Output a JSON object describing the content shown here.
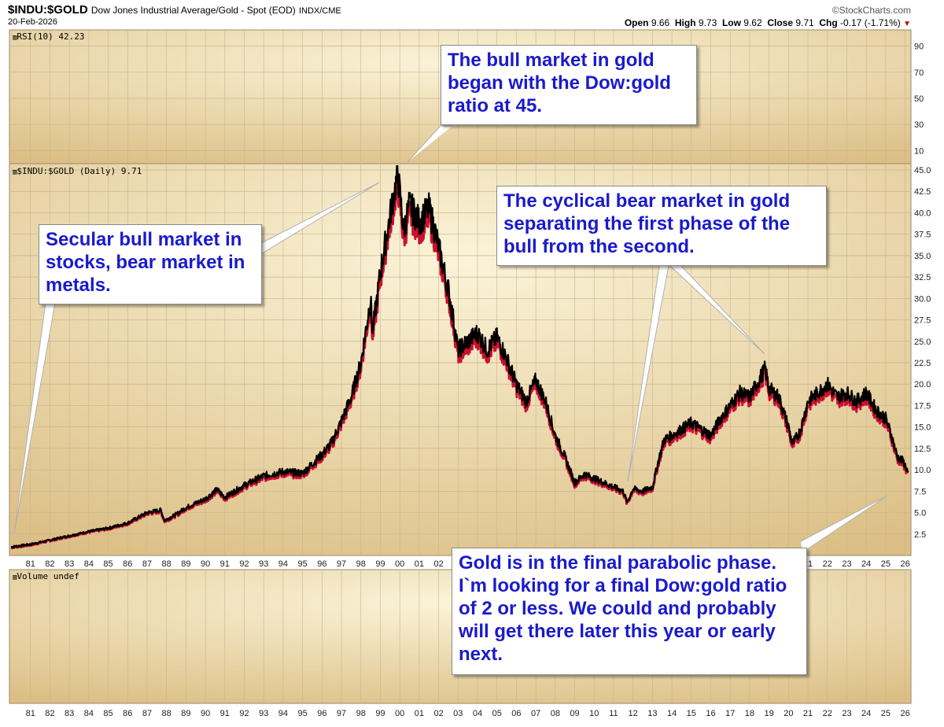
{
  "header": {
    "symbol": "$INDU:$GOLD",
    "description": "Dow Jones Industrial Average/Gold - Spot (EOD)",
    "exchange": "INDX/CME",
    "date": "20-Feb-2026",
    "watermark": "©StockCharts.com",
    "open_label": "Open",
    "open_value": "9.66",
    "high_label": "High",
    "high_value": "9.73",
    "low_label": "Low",
    "low_value": "9.62",
    "close_label": "Close",
    "close_value": "9.71",
    "chg_label": "Chg",
    "chg_value": "-0.17 (-1.71%)",
    "chg_arrow": "▼"
  },
  "panels": {
    "rsi_label": "RSI(10) 42.23",
    "price_label": "$INDU:$GOLD (Daily) 9.71",
    "volume_label": "Volume undef"
  },
  "callouts": {
    "bull_gold": "The bull market in gold began with the Dow:gold ratio at 45.",
    "secular": "Secular bull market in stocks, bear market in metals.",
    "cyclical": "The cyclical bear market in gold separating the first phase of the bull from the second.",
    "parabolic": "Gold is in the final parabolic phase. I`m looking for a final Dow:gold ratio of 2 or less. We could and probably will get there later this year or early next."
  },
  "colors": {
    "panel_bg": "#f0dcaa",
    "grid": "#c9b48b",
    "price_up": "#000000",
    "price_down": "#cc1030",
    "callout_text": "#1a1acc",
    "chg_down": "#cc0000"
  },
  "chart_data": {
    "type": "line",
    "title": "$INDU:$GOLD Dow Jones Industrial Average/Gold - Spot (EOD)",
    "xlabel": "",
    "ylabel": "",
    "x_ticks": [
      "81",
      "82",
      "83",
      "84",
      "85",
      "86",
      "87",
      "88",
      "89",
      "90",
      "91",
      "92",
      "93",
      "94",
      "95",
      "96",
      "97",
      "98",
      "99",
      "00",
      "01",
      "02",
      "03",
      "04",
      "05",
      "06",
      "07",
      "08",
      "09",
      "10",
      "11",
      "12",
      "13",
      "14",
      "15",
      "16",
      "17",
      "18",
      "19",
      "20",
      "21",
      "22",
      "23",
      "24",
      "25",
      "26"
    ],
    "rsi_ticks": [
      "90",
      "70",
      "50",
      "30",
      "10"
    ],
    "rsi_ylim": [
      0,
      100
    ],
    "price_ticks": [
      "45.0",
      "42.5",
      "40.0",
      "37.5",
      "35.0",
      "32.5",
      "30.0",
      "27.5",
      "25.0",
      "22.5",
      "20.0",
      "17.5",
      "15.0",
      "12.5",
      "10.0",
      "7.5",
      "5.0",
      "2.5"
    ],
    "ylim": [
      0,
      45
    ],
    "series": [
      {
        "name": "$INDU:$GOLD (Daily)",
        "x": [
          1980.0,
          1981.0,
          1982.0,
          1983.0,
          1984.0,
          1985.0,
          1986.0,
          1987.0,
          1987.7,
          1987.9,
          1988.5,
          1989.0,
          1990.0,
          1990.6,
          1991.0,
          1992.0,
          1993.0,
          1994.0,
          1995.0,
          1996.0,
          1996.5,
          1997.0,
          1997.5,
          1998.0,
          1998.5,
          1998.6,
          1999.0,
          1999.6,
          1999.9,
          2000.2,
          2000.5,
          2001.0,
          2001.5,
          2001.8,
          2002.0,
          2002.5,
          2002.8,
          2003.0,
          2003.5,
          2004.0,
          2004.5,
          2005.0,
          2005.5,
          2006.0,
          2006.5,
          2007.0,
          2007.5,
          2008.0,
          2008.5,
          2009.0,
          2009.5,
          2010.0,
          2010.5,
          2011.0,
          2011.5,
          2011.7,
          2012.0,
          2012.5,
          2013.0,
          2013.3,
          2013.6,
          2014.0,
          2015.0,
          2016.0,
          2016.5,
          2017.0,
          2017.5,
          2018.0,
          2018.8,
          2019.0,
          2019.5,
          2020.0,
          2020.2,
          2020.6,
          2021.0,
          2021.5,
          2022.0,
          2022.5,
          2023.0,
          2023.5,
          2024.0,
          2024.5,
          2025.0,
          2025.3,
          2025.6,
          2025.9,
          2026.15
        ],
        "values": [
          1.0,
          1.3,
          1.8,
          2.3,
          2.8,
          3.2,
          3.8,
          5.0,
          5.3,
          4.1,
          4.8,
          5.6,
          6.6,
          7.7,
          6.8,
          8.2,
          9.3,
          9.8,
          9.6,
          11.8,
          13.2,
          15.7,
          18.5,
          22.5,
          30.0,
          26.0,
          33.0,
          41.0,
          44.5,
          38.0,
          41.0,
          39.0,
          40.5,
          38.0,
          36.0,
          31.0,
          27.0,
          24.0,
          25.0,
          26.0,
          24.0,
          25.5,
          23.0,
          20.0,
          18.0,
          20.5,
          18.0,
          14.0,
          11.5,
          8.5,
          9.5,
          9.0,
          8.5,
          8.0,
          7.5,
          6.2,
          7.8,
          7.5,
          8.0,
          11.0,
          13.5,
          14.0,
          15.5,
          14.0,
          16.0,
          17.5,
          19.0,
          18.5,
          21.8,
          19.5,
          18.5,
          15.0,
          13.0,
          14.5,
          18.0,
          19.0,
          20.0,
          18.5,
          19.0,
          18.0,
          19.0,
          17.0,
          16.0,
          14.0,
          11.5,
          11.0,
          9.71
        ]
      }
    ],
    "rsi_label": "RSI(10) 42.23",
    "volume_label": "Volume undef"
  }
}
